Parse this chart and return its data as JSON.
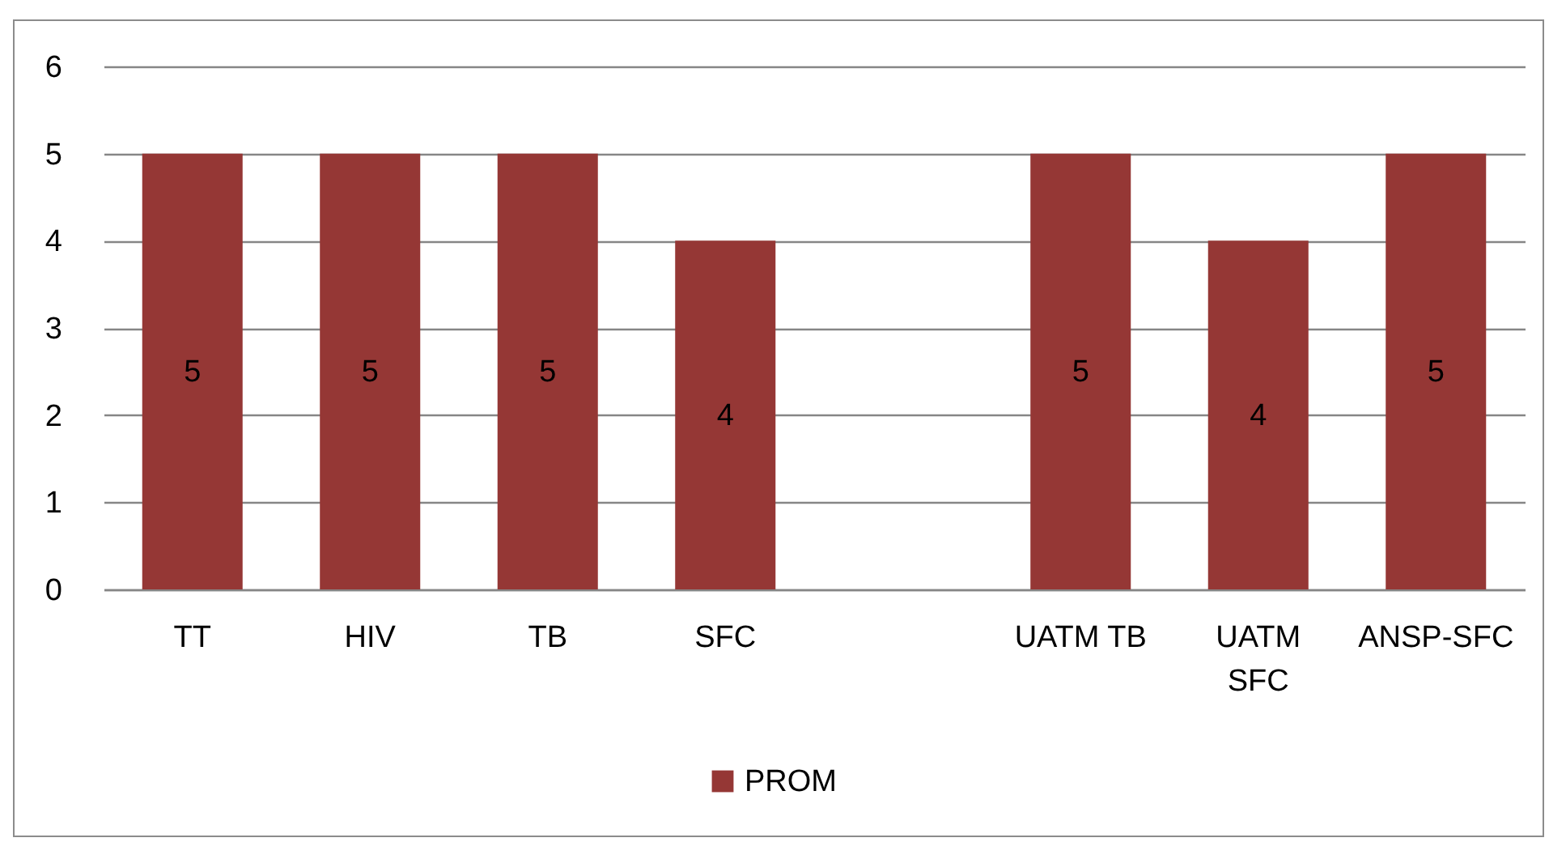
{
  "chart_data": {
    "type": "bar",
    "categories": [
      "TT",
      "HIV",
      "TB",
      "SFC",
      null,
      "UATM TB",
      "UATM SFC",
      "ANSP-SFC"
    ],
    "series": [
      {
        "name": "PROM",
        "color": "#953735",
        "values": [
          5,
          5,
          5,
          4,
          null,
          5,
          4,
          5
        ]
      }
    ],
    "ylim": [
      0,
      6
    ],
    "yticks": [
      0,
      1,
      2,
      3,
      4,
      5,
      6
    ],
    "grid": "y",
    "legend": "bottom",
    "data_labels": true
  }
}
